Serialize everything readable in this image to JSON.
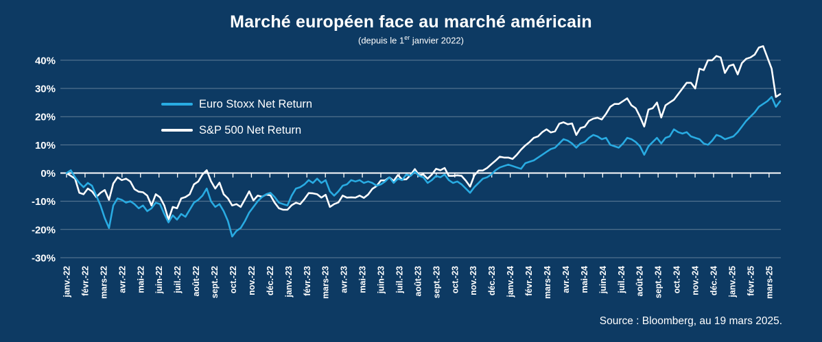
{
  "title": "Marché européen face au marché américain",
  "subtitle": {
    "prefix": "(depuis le 1",
    "sup": "er",
    "suffix": " janvier 2022)"
  },
  "source": "Source : Bloomberg, au 19 mars 2025.",
  "colors": {
    "background": "#0d3a63",
    "euro_stoxx_line": "#29abe2",
    "sp500_line": "#ffffff",
    "gridline": "#a8b6c4",
    "zero_axis": "#ffffff",
    "text": "#ffffff"
  },
  "chart_data": {
    "type": "line",
    "title": "Marché européen face au marché américain",
    "subtitle": "(depuis le 1er janvier 2022)",
    "xlabel": "",
    "ylabel": "",
    "unit": "%",
    "grid": true,
    "legend_position": "upper-left-inside",
    "ylim": [
      -33,
      47
    ],
    "y_ticks": [
      "40%",
      "30%",
      "20%",
      "10%",
      "0%",
      "-10%",
      "-20%",
      "-30%"
    ],
    "x_tick_labels": [
      "janv.-22",
      "févr.-22",
      "mars-22",
      "avr.-22",
      "mai-22",
      "juin-22",
      "juil.-22",
      "août-22",
      "sept.-22",
      "oct.-22",
      "nov.-22",
      "déc.-22",
      "janv.-23",
      "févr.-23",
      "mars-23",
      "avr.-23",
      "mai-23",
      "juin-23",
      "juil.-23",
      "août-23",
      "sept.-23",
      "oct.-23",
      "nov.-23",
      "déc.-23",
      "janv.-24",
      "févr.-24",
      "mars-24",
      "avr.-24",
      "mai-24",
      "juin-24",
      "juil.-24",
      "août-24",
      "sept.-24",
      "oct.-24",
      "nov.-24",
      "déc.-24",
      "janv.-25",
      "févr.-25",
      "mars-25"
    ],
    "x_span_months": 38.6,
    "sampling": "weekly",
    "series": [
      {
        "name": "Euro Stoxx Net Return",
        "color": "#29abe2",
        "values": [
          0,
          1,
          -1.5,
          -3.5,
          -5,
          -3.5,
          -4.5,
          -8,
          -11.5,
          -16,
          -19.5,
          -11.5,
          -9,
          -9.5,
          -10.5,
          -10,
          -11,
          -12.5,
          -11.5,
          -13.5,
          -12.5,
          -10.5,
          -11,
          -14.5,
          -17.5,
          -15,
          -16.5,
          -14.5,
          -15.5,
          -13,
          -10.5,
          -9.5,
          -8,
          -5.5,
          -10,
          -12,
          -11,
          -13.5,
          -17,
          -22.5,
          -20.5,
          -19.5,
          -17,
          -14,
          -12,
          -10,
          -8.5,
          -7.5,
          -7,
          -8.5,
          -10.5,
          -11,
          -11.5,
          -8,
          -5.5,
          -5,
          -4,
          -2.5,
          -3.5,
          -2,
          -3.5,
          -2.5,
          -6.5,
          -8,
          -6.5,
          -4.5,
          -4,
          -2.5,
          -3,
          -2.5,
          -3.5,
          -3,
          -3.5,
          -4.5,
          -4,
          -3,
          -1.5,
          -3.5,
          -2,
          -2.5,
          -0.5,
          -1,
          0.5,
          -1,
          -1.5,
          -3.5,
          -2.5,
          -1,
          -1.5,
          -0.5,
          -2.5,
          -3.5,
          -3,
          -4,
          -5.5,
          -7,
          -5,
          -3.5,
          -2,
          -1.5,
          -0.5,
          1,
          2,
          2.5,
          3,
          2.5,
          2,
          1.5,
          3.5,
          4,
          4.5,
          5.5,
          6.5,
          7.5,
          8.5,
          9,
          10.5,
          12,
          11.5,
          10.5,
          9,
          10.5,
          11,
          12.5,
          13.5,
          13,
          12,
          12.5,
          10,
          9.5,
          9,
          10.5,
          12.5,
          12,
          11,
          9.5,
          6.5,
          9.5,
          11,
          12.5,
          10.5,
          12.5,
          13,
          15.5,
          14.5,
          14,
          14.5,
          13,
          12.5,
          12,
          10.5,
          10,
          11.5,
          13.5,
          13,
          12,
          12.5,
          13,
          14.5,
          16.5,
          18.5,
          20,
          21.5,
          23.5,
          24.5,
          25.5,
          27,
          23.5,
          25.5
        ]
      },
      {
        "name": "S&P 500 Net Return",
        "color": "#ffffff",
        "values": [
          0,
          -1,
          -2,
          -7,
          -7.5,
          -5.5,
          -6.5,
          -8.5,
          -7,
          -6,
          -9.5,
          -3.7,
          -1.5,
          -2.5,
          -2,
          -3,
          -5.7,
          -6.6,
          -6.8,
          -8,
          -11.5,
          -7.5,
          -8.6,
          -11.5,
          -16.5,
          -12,
          -12.5,
          -9,
          -8.5,
          -7.5,
          -4,
          -3,
          -0.5,
          1,
          -2.9,
          -5.5,
          -3.4,
          -7.5,
          -9,
          -11.5,
          -11,
          -12,
          -9.3,
          -6.5,
          -9.7,
          -8,
          -8.4,
          -7.6,
          -7.9,
          -10.5,
          -12.5,
          -13,
          -13,
          -11.4,
          -10.5,
          -11,
          -9.2,
          -7.1,
          -7.2,
          -7.5,
          -8.7,
          -7.7,
          -12,
          -11,
          -10.4,
          -8,
          -8.7,
          -8.6,
          -8.7,
          -8,
          -8.8,
          -7.6,
          -5.6,
          -4.6,
          -2.6,
          -2.6,
          -1.5,
          -2.8,
          -0.7,
          -2.3,
          -2.2,
          -0.7,
          1.4,
          -0.8,
          -0.5,
          -2,
          -0.5,
          1.5,
          1,
          1.8,
          -1,
          -1,
          -0.8,
          -1,
          -2.7,
          -4.8,
          -0.8,
          0.9,
          0.9,
          1.8,
          3.1,
          4.4,
          5.8,
          5.5,
          5.5,
          5,
          6.5,
          8.3,
          9.8,
          11,
          12.5,
          13,
          14.5,
          15.5,
          14.4,
          14.8,
          17.5,
          18,
          17.3,
          17.6,
          13.5,
          16,
          16.4,
          18.5,
          19.3,
          19.6,
          19,
          21,
          23.5,
          24.5,
          24.5,
          25.5,
          26.5,
          24,
          23,
          20,
          16.5,
          22.5,
          23,
          25,
          19.7,
          24,
          25,
          26,
          28,
          30,
          32,
          32,
          30,
          37,
          36.5,
          40,
          40,
          41.5,
          41,
          35.5,
          38,
          38.5,
          35,
          39,
          40.5,
          41,
          42,
          44.5,
          45,
          41,
          37,
          27,
          28
        ]
      }
    ]
  }
}
